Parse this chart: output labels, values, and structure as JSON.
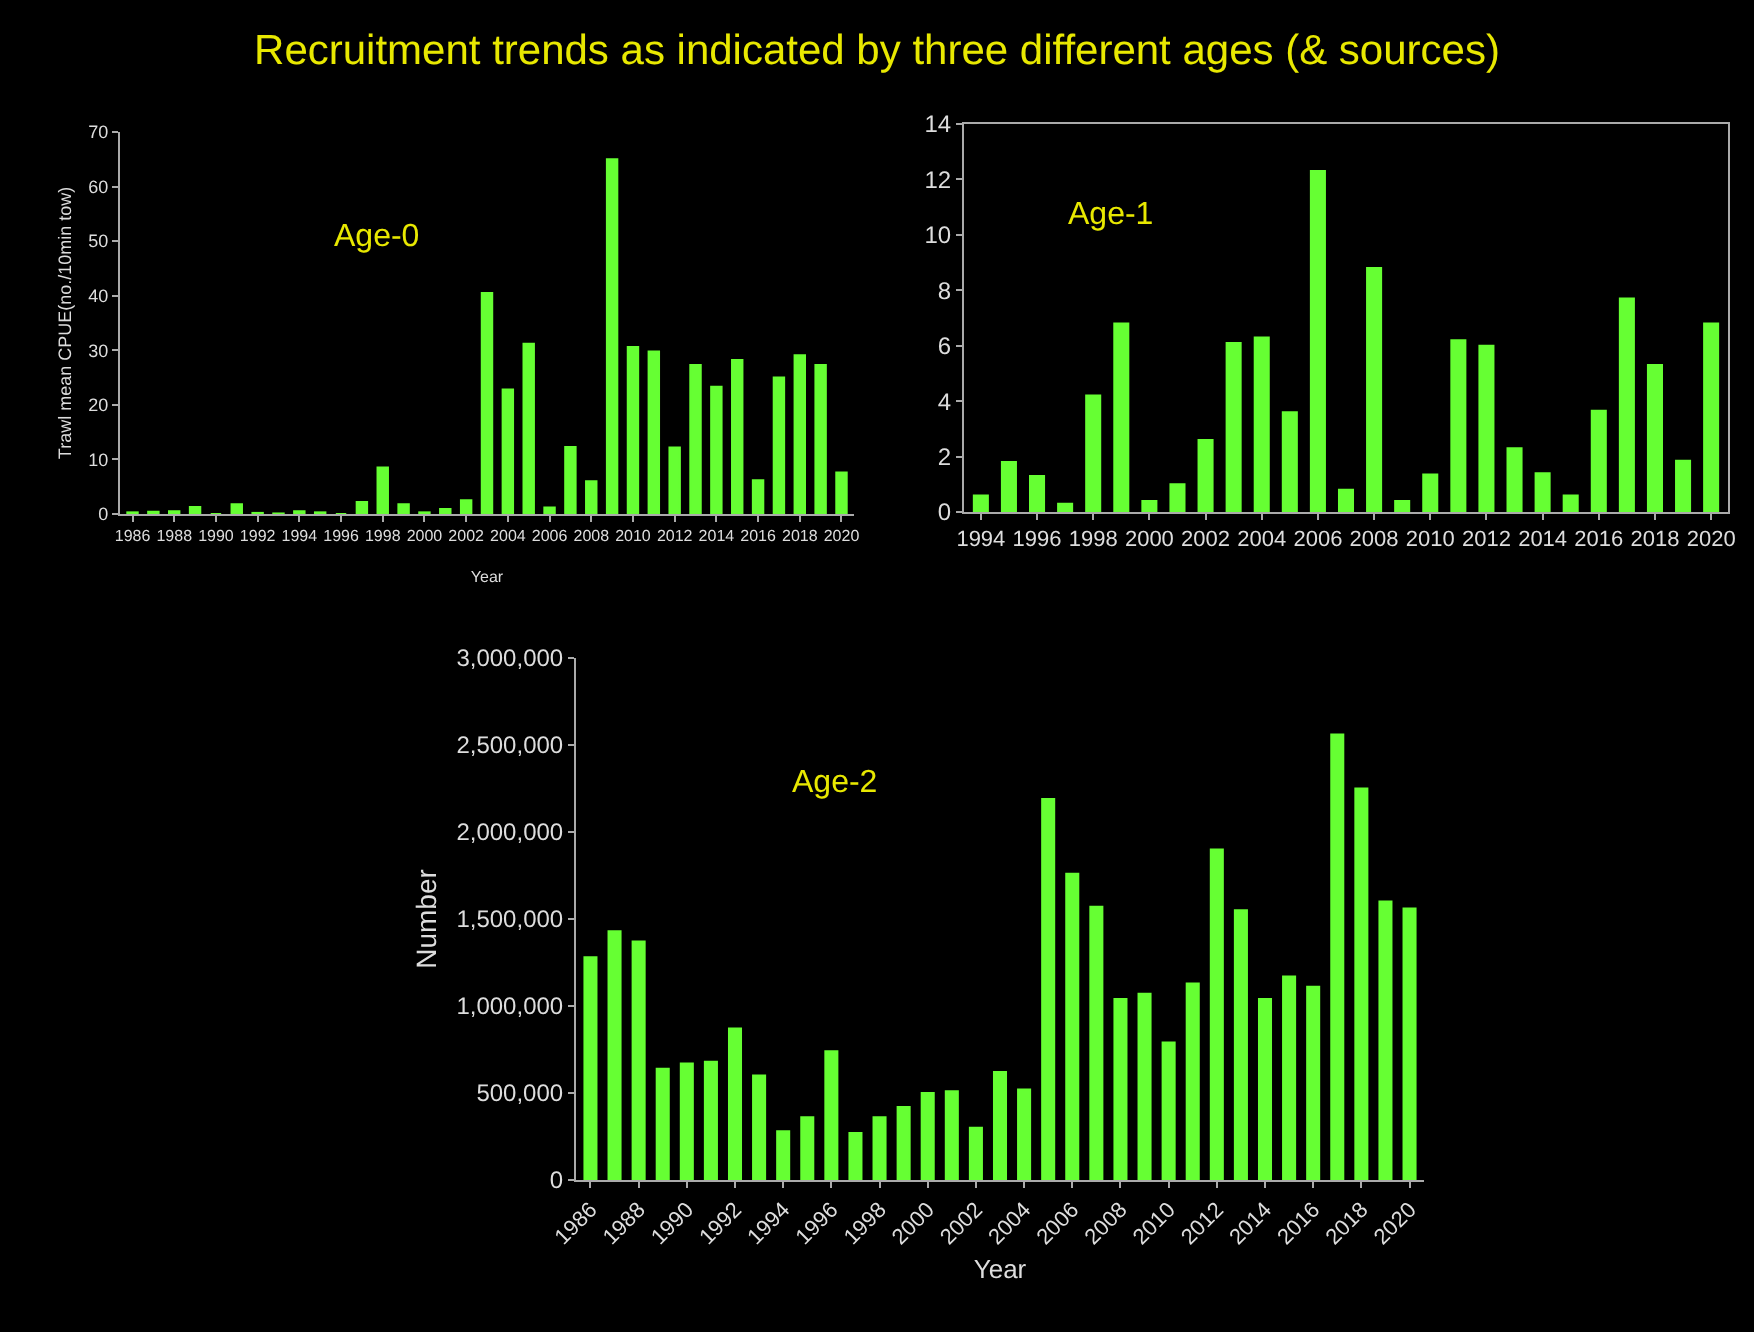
{
  "chart_data": [
    {
      "type": "bar",
      "title": "Recruitment trends as indicated by three different ages (& sources)",
      "annotations": [
        "Age-0"
      ],
      "xlabel": "Year",
      "ylabel": "Trawl mean CPUE(no./10min tow)",
      "categories": [
        "1986",
        null,
        "1988",
        null,
        "1990",
        null,
        "1992",
        null,
        "1994",
        null,
        "1996",
        null,
        "1998",
        null,
        "2000",
        null,
        "2002",
        null,
        "2004",
        null,
        "2006",
        null,
        "2008",
        null,
        "2010",
        null,
        "2012",
        null,
        "2014",
        null,
        "2016",
        null,
        "2018",
        null,
        "2020"
      ],
      "values": [
        0.3,
        0.4,
        0.5,
        1.3,
        0,
        1.8,
        0.2,
        0.1,
        0.5,
        0.3,
        0,
        2.2,
        8.5,
        1.8,
        0.3,
        0.9,
        2.5,
        40.5,
        22.8,
        31.2,
        1.2,
        12.3,
        6,
        65,
        30.6,
        29.8,
        12.2,
        27.3,
        23.3,
        28.2,
        6.2,
        25,
        29.1,
        27.3,
        7.6
      ],
      "color": "#66ff33",
      "ylim": [
        0,
        70
      ],
      "yticks": [
        0,
        10,
        20,
        30,
        40,
        50,
        60,
        70
      ]
    },
    {
      "type": "bar",
      "annotations": [
        "Age-1"
      ],
      "categories": [
        "1994",
        null,
        "1996",
        null,
        "1998",
        null,
        "2000",
        null,
        "2002",
        null,
        "2004",
        null,
        "2006",
        null,
        "2008",
        null,
        "2010",
        null,
        "2012",
        null,
        "2014",
        null,
        "2016",
        null,
        "2018",
        null,
        "2020"
      ],
      "values": [
        0.6,
        1.8,
        1.3,
        0.3,
        4.2,
        6.8,
        0.4,
        1.0,
        2.6,
        6.1,
        6.3,
        3.6,
        12.3,
        0.8,
        8.8,
        0.4,
        1.35,
        6.2,
        6.0,
        2.3,
        1.4,
        0.6,
        3.65,
        7.7,
        5.3,
        1.85,
        6.8
      ],
      "color": "#66ff33",
      "ylim": [
        0,
        14
      ],
      "yticks": [
        0,
        2,
        4,
        6,
        8,
        10,
        12,
        14
      ]
    },
    {
      "type": "bar",
      "annotations": [
        "Age-2"
      ],
      "xlabel": "Year",
      "ylabel": "Number",
      "categories": [
        "1986",
        null,
        "1988",
        null,
        "1990",
        null,
        "1992",
        null,
        "1994",
        null,
        "1996",
        null,
        "1998",
        null,
        "2000",
        null,
        "2002",
        null,
        "2004",
        null,
        "2006",
        null,
        "2008",
        null,
        "2010",
        null,
        "2012",
        null,
        "2014",
        null,
        "2016",
        null,
        "2018",
        null,
        "2020"
      ],
      "values": [
        1280000,
        1430000,
        1370000,
        640000,
        670000,
        680000,
        870000,
        600000,
        280000,
        360000,
        740000,
        270000,
        360000,
        420000,
        500000,
        510000,
        300000,
        620000,
        520000,
        2190000,
        1760000,
        1570000,
        1040000,
        1070000,
        790000,
        1130000,
        1900000,
        1550000,
        1040000,
        1170000,
        1110000,
        2560000,
        2250000,
        1600000,
        1560000
      ],
      "color": "#66ff33",
      "ylim": [
        0,
        3000000
      ],
      "yticks": [
        0,
        {
          "value": 500000,
          "label": "500,000"
        },
        {
          "value": 1000000,
          "label": "1,000,000"
        },
        {
          "value": 1500000,
          "label": "1,500,000"
        },
        {
          "value": 2000000,
          "label": "2,000,000"
        },
        {
          "value": 2500000,
          "label": "2,500,000"
        },
        {
          "value": 3000000,
          "label": "3,000,000"
        }
      ]
    }
  ]
}
